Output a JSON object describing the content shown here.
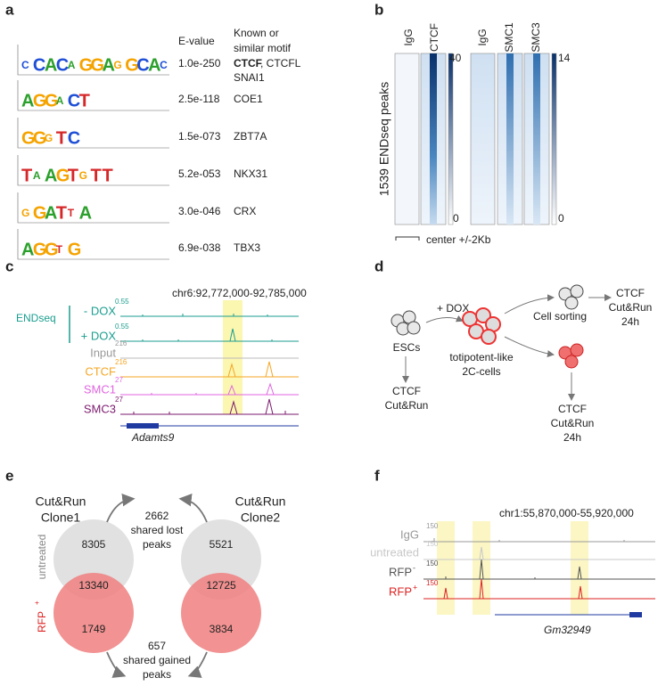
{
  "panels": {
    "a": {
      "label": "a",
      "header_evalue": "E-value",
      "header_motif": [
        "Known or",
        "similar motif"
      ],
      "rows": [
        {
          "logo": [
            "C",
            "C",
            "A",
            "C",
            "A",
            "G",
            "G",
            "A",
            "G",
            "G",
            "C",
            "A",
            "C"
          ],
          "evalue": "1.0e-250",
          "motif_bold": "CTCF",
          "motif": ", CTCFL",
          "motif_line2": "SNAI1"
        },
        {
          "logo": [
            "A",
            "G",
            "G",
            "A",
            "C",
            "T"
          ],
          "evalue": "2.5e-118",
          "motif": "COE1"
        },
        {
          "logo": [
            "G",
            "G",
            "G",
            "T",
            "C"
          ],
          "evalue": "1.5e-073",
          "motif": "ZBT7A"
        },
        {
          "logo": [
            "T",
            "A",
            "A",
            "G",
            "T",
            "G",
            "T",
            "T"
          ],
          "evalue": "5.2e-053",
          "motif": "NKX31"
        },
        {
          "logo": [
            "G",
            "G",
            "A",
            "T",
            "T",
            "A"
          ],
          "evalue": "3.0e-046",
          "motif": "CRX"
        },
        {
          "logo": [
            "A",
            "G",
            "G",
            "T",
            "G"
          ],
          "evalue": "6.9e-038",
          "motif": "TBX3"
        }
      ]
    },
    "b": {
      "label": "b",
      "y_label": "1539 ENDseq peaks",
      "x_label": "center +/-2Kb",
      "groups": [
        {
          "columns": [
            "IgG",
            "CTCF"
          ],
          "scale_max": 40,
          "scale_min": 0
        },
        {
          "columns": [
            "IgG",
            "SMC1",
            "SMC3"
          ],
          "scale_max": 14,
          "scale_min": 0
        }
      ]
    },
    "c": {
      "label": "c",
      "coordinates": "chr6:92,772,000-92,785,000",
      "group_label": "ENDseq",
      "tracks": [
        {
          "name": "- DOX",
          "scale": 0.55
        },
        {
          "name": "+ DOX",
          "scale": 0.55
        },
        {
          "name": "Input",
          "scale": 216
        },
        {
          "name": "CTCF",
          "scale": 216
        },
        {
          "name": "SMC1",
          "scale": 27
        },
        {
          "name": "SMC3",
          "scale": 27
        }
      ],
      "gene": "Adamts9"
    },
    "d": {
      "label": "d",
      "treatment": "+ DOX",
      "start": "ESCs",
      "intermediate": [
        "totipotent-like",
        "2C-cells"
      ],
      "sorting": "Cell sorting",
      "assays": [
        [
          "CTCF",
          "Cut&Run"
        ],
        [
          "CTCF",
          "Cut&Run",
          "24h"
        ],
        [
          "CTCF",
          "Cut&Run",
          "24h"
        ]
      ]
    },
    "e": {
      "label": "e",
      "left_title": [
        "Cut&Run",
        "Clone1"
      ],
      "right_title": [
        "Cut&Run",
        "Clone2"
      ],
      "top_text": [
        "2662",
        "shared lost",
        "peaks"
      ],
      "bottom_text": [
        "657",
        "shared gained",
        "peaks"
      ],
      "row_labels": [
        "untreated",
        "RFP",
        "+"
      ],
      "left": [
        "8305",
        "13340",
        "1749"
      ],
      "right": [
        "5521",
        "12725",
        "3834"
      ]
    },
    "f": {
      "label": "f",
      "coordinates": "chr1:55,870,000-55,920,000",
      "tracks": [
        {
          "name": "IgG",
          "scale": 150
        },
        {
          "name": "untreated",
          "scale": 150
        },
        {
          "name": "RFP",
          "sup": "-",
          "scale": 150
        },
        {
          "name": "RFP",
          "sup": "+",
          "scale": 150
        }
      ],
      "gene": "Gm32949"
    }
  }
}
